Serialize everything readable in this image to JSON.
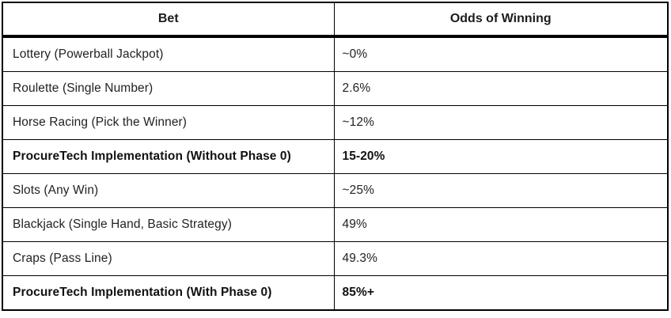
{
  "table": {
    "columns": [
      {
        "label": "Bet"
      },
      {
        "label": "Odds of Winning"
      }
    ],
    "rows": [
      {
        "bet": "Lottery (Powerball Jackpot)",
        "odds": "~0%",
        "bold": false
      },
      {
        "bet": "Roulette (Single Number)",
        "odds": "2.6%",
        "bold": false
      },
      {
        "bet": "Horse Racing (Pick the Winner)",
        "odds": "~12%",
        "bold": false
      },
      {
        "bet": "ProcureTech Implementation (Without Phase 0)",
        "odds": "15-20%",
        "bold": true
      },
      {
        "bet": "Slots (Any Win)",
        "odds": "~25%",
        "bold": false
      },
      {
        "bet": "Blackjack (Single Hand, Basic Strategy)",
        "odds": "49%",
        "bold": false
      },
      {
        "bet": "Craps (Pass Line)",
        "odds": "49.3%",
        "bold": false
      },
      {
        "bet": "ProcureTech Implementation (With Phase 0)",
        "odds": "85%+",
        "bold": true
      }
    ],
    "colors": {
      "border": "#000000",
      "text": "#222222",
      "background": "#ffffff"
    }
  }
}
